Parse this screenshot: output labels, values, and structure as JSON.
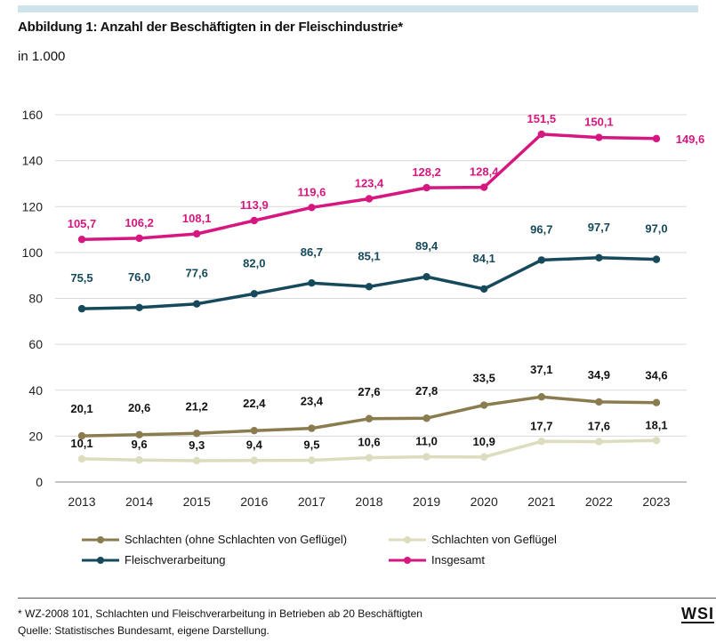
{
  "title": "Abbildung 1: Anzahl der Beschäftigten in der Fleischindustrie*",
  "subtitle": "in 1.000",
  "footnote": "* WZ-2008 101, Schlachten und Fleischverarbeitung in Betrieben ab 20 Beschäftigten",
  "source": "Quelle: Statistisches Bundesamt, eigene Darstellung.",
  "logo_text": "WSI",
  "chart_data": {
    "type": "line",
    "title": "Abbildung 1: Anzahl der Beschäftigten in der Fleischindustrie*",
    "ylabel": "in 1.000",
    "x": [
      "2013",
      "2014",
      "2015",
      "2016",
      "2017",
      "2018",
      "2019",
      "2020",
      "2021",
      "2022",
      "2023"
    ],
    "ylim": [
      0,
      160
    ],
    "yticks": [
      "0",
      "20",
      "40",
      "60",
      "80",
      "100",
      "120",
      "140",
      "160"
    ],
    "grid": "horizontal",
    "legend_position": "bottom",
    "series": [
      {
        "name": "Insgesamt",
        "color": "#d6177f",
        "values": [
          105.7,
          106.2,
          108.1,
          113.9,
          119.6,
          123.4,
          128.2,
          128.4,
          151.5,
          150.1,
          149.6
        ],
        "labels": [
          "105,7",
          "106,2",
          "108,1",
          "113,9",
          "119,6",
          "123,4",
          "128,2",
          "128,4",
          "151,5",
          "150,1",
          "149,6"
        ]
      },
      {
        "name": "Fleischverarbeitung",
        "color": "#16495b",
        "values": [
          75.5,
          76.0,
          77.6,
          82.0,
          86.7,
          85.1,
          89.4,
          84.1,
          96.7,
          97.7,
          97.0
        ],
        "labels": [
          "75,5",
          "76,0",
          "77,6",
          "82,0",
          "86,7",
          "85,1",
          "89,4",
          "84,1",
          "96,7",
          "97,7",
          "97,0"
        ]
      },
      {
        "name": "Schlachten (ohne Schlachten von Geflügel)",
        "color": "#8b7c4f",
        "values": [
          20.1,
          20.6,
          21.2,
          22.4,
          23.4,
          27.6,
          27.8,
          33.5,
          37.1,
          34.9,
          34.6
        ],
        "labels": [
          "20,1",
          "20,6",
          "21,2",
          "22,4",
          "23,4",
          "27,6",
          "27,8",
          "33,5",
          "37,1",
          "34,9",
          "34,6"
        ]
      },
      {
        "name": "Schlachten von Geflügel",
        "color": "#dcdcbe",
        "values": [
          10.1,
          9.6,
          9.3,
          9.4,
          9.5,
          10.6,
          11.0,
          10.9,
          17.7,
          17.6,
          18.1
        ],
        "labels": [
          "10,1",
          "9,6",
          "9,3",
          "9,4",
          "9,5",
          "10,6",
          "11,0",
          "10,9",
          "17,7",
          "17,6",
          "18,1"
        ]
      }
    ],
    "legend": [
      {
        "series": 2,
        "label": "Schlachten (ohne Schlachten von Geflügel)"
      },
      {
        "series": 3,
        "label": "Schlachten von Geflügel"
      },
      {
        "series": 1,
        "label": "Fleischverarbeitung"
      },
      {
        "series": 0,
        "label": "Insgesamt"
      }
    ]
  }
}
